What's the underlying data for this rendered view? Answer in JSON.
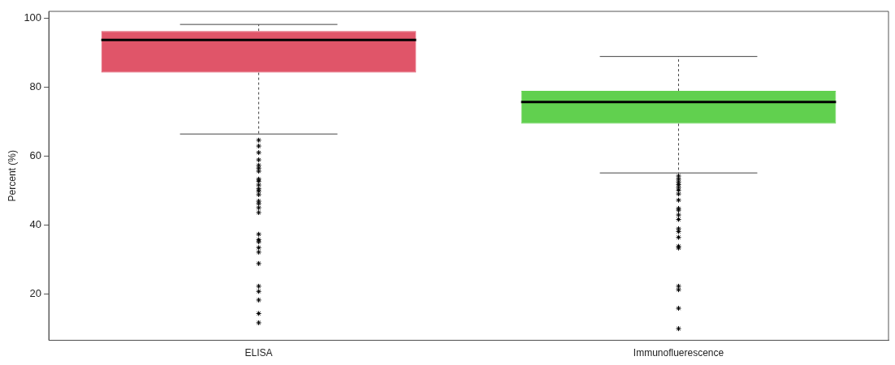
{
  "chart_data": {
    "type": "box",
    "categories": [
      "ELISA",
      "Immunofluerescence"
    ],
    "ylabel": "Percent (%)",
    "ylim": [
      6.5,
      102
    ],
    "yticks": [
      20,
      40,
      60,
      80,
      100
    ],
    "colors": [
      "#e05569",
      "#61d04f"
    ],
    "marker": "star",
    "grid": false,
    "legend": false,
    "boxes": [
      {
        "low": 66.4,
        "q1": 84.2,
        "median": 93.7,
        "q3": 96.3,
        "high": 98.2,
        "outliers": [
          64.6,
          62.9,
          61.0,
          58.9,
          57.3,
          56.5,
          55.6,
          53.3,
          52.7,
          51.6,
          50.5,
          49.8,
          48.8,
          46.9,
          46.2,
          45.0,
          43.6,
          37.3,
          35.7,
          35.1,
          33.4,
          32.1,
          28.8,
          22.2,
          20.7,
          18.2,
          14.3,
          11.6
        ]
      },
      {
        "low": 55.1,
        "q1": 69.4,
        "median": 75.7,
        "q3": 78.9,
        "high": 88.9,
        "outliers": [
          54.2,
          53.3,
          52.5,
          51.7,
          50.9,
          50.1,
          49.0,
          47.2,
          44.8,
          44.3,
          42.9,
          41.6,
          38.9,
          38.1,
          36.4,
          33.8,
          33.3,
          22.2,
          21.2,
          15.8,
          9.9
        ]
      }
    ]
  }
}
